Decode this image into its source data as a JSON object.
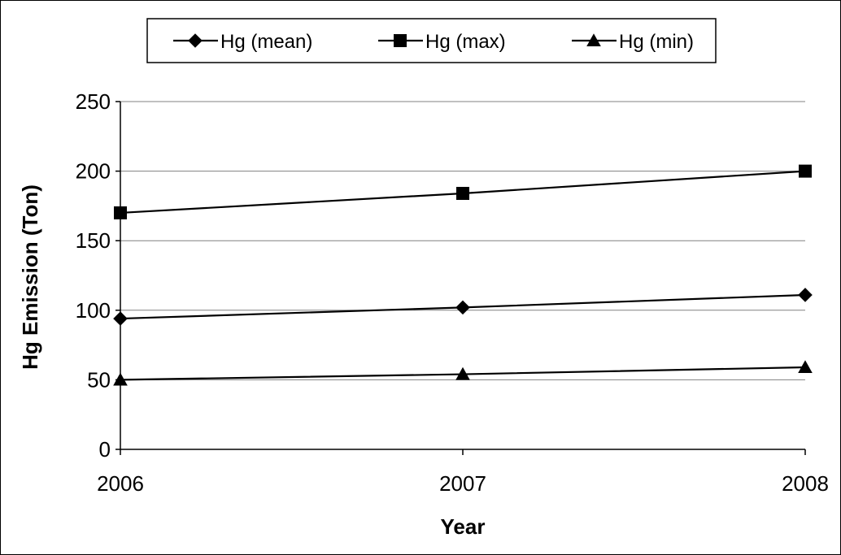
{
  "chart_data": {
    "type": "line",
    "title": "",
    "xlabel": "Year",
    "ylabel": "Hg Emission (Ton)",
    "x": [
      "2006",
      "2007",
      "2008"
    ],
    "ylim": [
      0,
      250
    ],
    "yticks": [
      "0",
      "50",
      "100",
      "150",
      "200",
      "250"
    ],
    "grid": "horizontal",
    "legend_position": "top",
    "series": [
      {
        "name": "Hg (mean)",
        "marker": "diamond",
        "color": "#000000",
        "values": [
          94,
          102,
          111
        ]
      },
      {
        "name": "Hg (max)",
        "marker": "square",
        "color": "#000000",
        "values": [
          170,
          184,
          200
        ]
      },
      {
        "name": "Hg (min)",
        "marker": "triangle",
        "color": "#000000",
        "values": [
          50,
          54,
          59
        ]
      }
    ]
  }
}
